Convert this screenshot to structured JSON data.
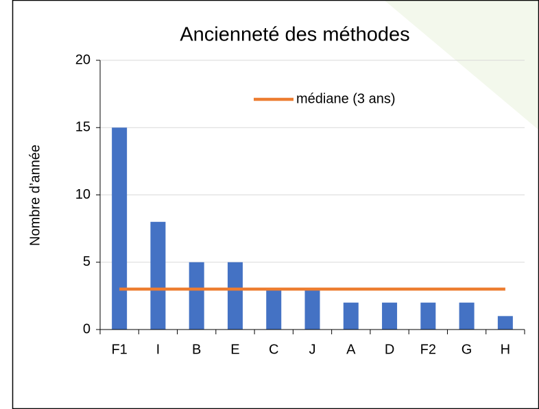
{
  "chart_data": {
    "type": "bar",
    "title": "Ancienneté des méthodes",
    "y_label": "Nombre d’année",
    "categories": [
      "F1",
      "I",
      "B",
      "E",
      "C",
      "J",
      "A",
      "D",
      "F2",
      "G",
      "H"
    ],
    "series": [
      {
        "type": "bar",
        "color": "#4472c4",
        "values": [
          15,
          8,
          5,
          5,
          3,
          3,
          2,
          2,
          2,
          2,
          1
        ]
      },
      {
        "type": "line",
        "name": "médiane (3 ans)",
        "color": "#ed7d31",
        "values": [
          3,
          3,
          3,
          3,
          3,
          3,
          3,
          3,
          3,
          3,
          3
        ]
      }
    ],
    "ylim": [
      0,
      20
    ],
    "yticks": [
      0,
      5,
      10,
      15,
      20
    ],
    "grid": true,
    "legend": "top"
  }
}
